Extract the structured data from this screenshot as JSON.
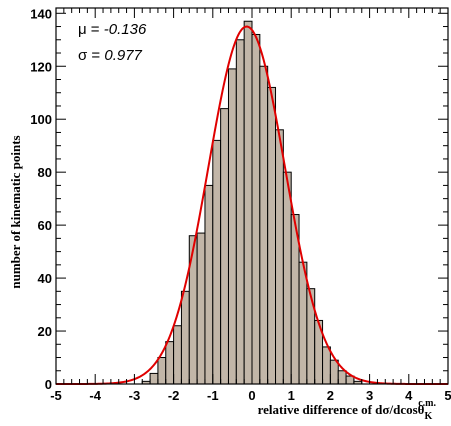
{
  "chart_data": {
    "type": "histogram",
    "xlim": [
      -5,
      5
    ],
    "ylim": [
      0,
      142
    ],
    "bin_width": 0.2,
    "histogram": {
      "fill_color": "#c2b6a8",
      "edge_color": "#000000",
      "bins": [
        {
          "x0": -2.8,
          "count": 1
        },
        {
          "x0": -2.6,
          "count": 4
        },
        {
          "x0": -2.4,
          "count": 10
        },
        {
          "x0": -2.2,
          "count": 16
        },
        {
          "x0": -2.0,
          "count": 22
        },
        {
          "x0": -1.8,
          "count": 35
        },
        {
          "x0": -1.6,
          "count": 56
        },
        {
          "x0": -1.4,
          "count": 57
        },
        {
          "x0": -1.2,
          "count": 75
        },
        {
          "x0": -1.0,
          "count": 92
        },
        {
          "x0": -0.8,
          "count": 104
        },
        {
          "x0": -0.6,
          "count": 119
        },
        {
          "x0": -0.4,
          "count": 130
        },
        {
          "x0": -0.2,
          "count": 137
        },
        {
          "x0": 0.0,
          "count": 132
        },
        {
          "x0": 0.2,
          "count": 120
        },
        {
          "x0": 0.4,
          "count": 112
        },
        {
          "x0": 0.6,
          "count": 96
        },
        {
          "x0": 0.8,
          "count": 80
        },
        {
          "x0": 1.0,
          "count": 64
        },
        {
          "x0": 1.2,
          "count": 46
        },
        {
          "x0": 1.4,
          "count": 36
        },
        {
          "x0": 1.6,
          "count": 24
        },
        {
          "x0": 1.8,
          "count": 14
        },
        {
          "x0": 2.0,
          "count": 9
        },
        {
          "x0": 2.2,
          "count": 5
        },
        {
          "x0": 2.4,
          "count": 3
        },
        {
          "x0": 2.6,
          "count": 1
        }
      ]
    },
    "fit": {
      "type": "gaussian",
      "color": "#e00000",
      "mean": -0.136,
      "sigma": 0.977,
      "amplitude": 135
    },
    "annotations": [
      {
        "label": "μ = ",
        "value": "-0.136"
      },
      {
        "label": "σ = ",
        "value": "0.977"
      }
    ],
    "x_ticks": [
      "-5",
      "-4",
      "-3",
      "-2",
      "-1",
      "0",
      "1",
      "2",
      "3",
      "4",
      "5"
    ],
    "y_ticks": [
      "0",
      "20",
      "40",
      "60",
      "80",
      "100",
      "120",
      "140"
    ],
    "xlabel": "relative difference of dσ/dcosθ",
    "xlabel_subscript": "K",
    "xlabel_superscript": "c.m.",
    "ylabel": "number of kinematic points",
    "grid": false
  }
}
